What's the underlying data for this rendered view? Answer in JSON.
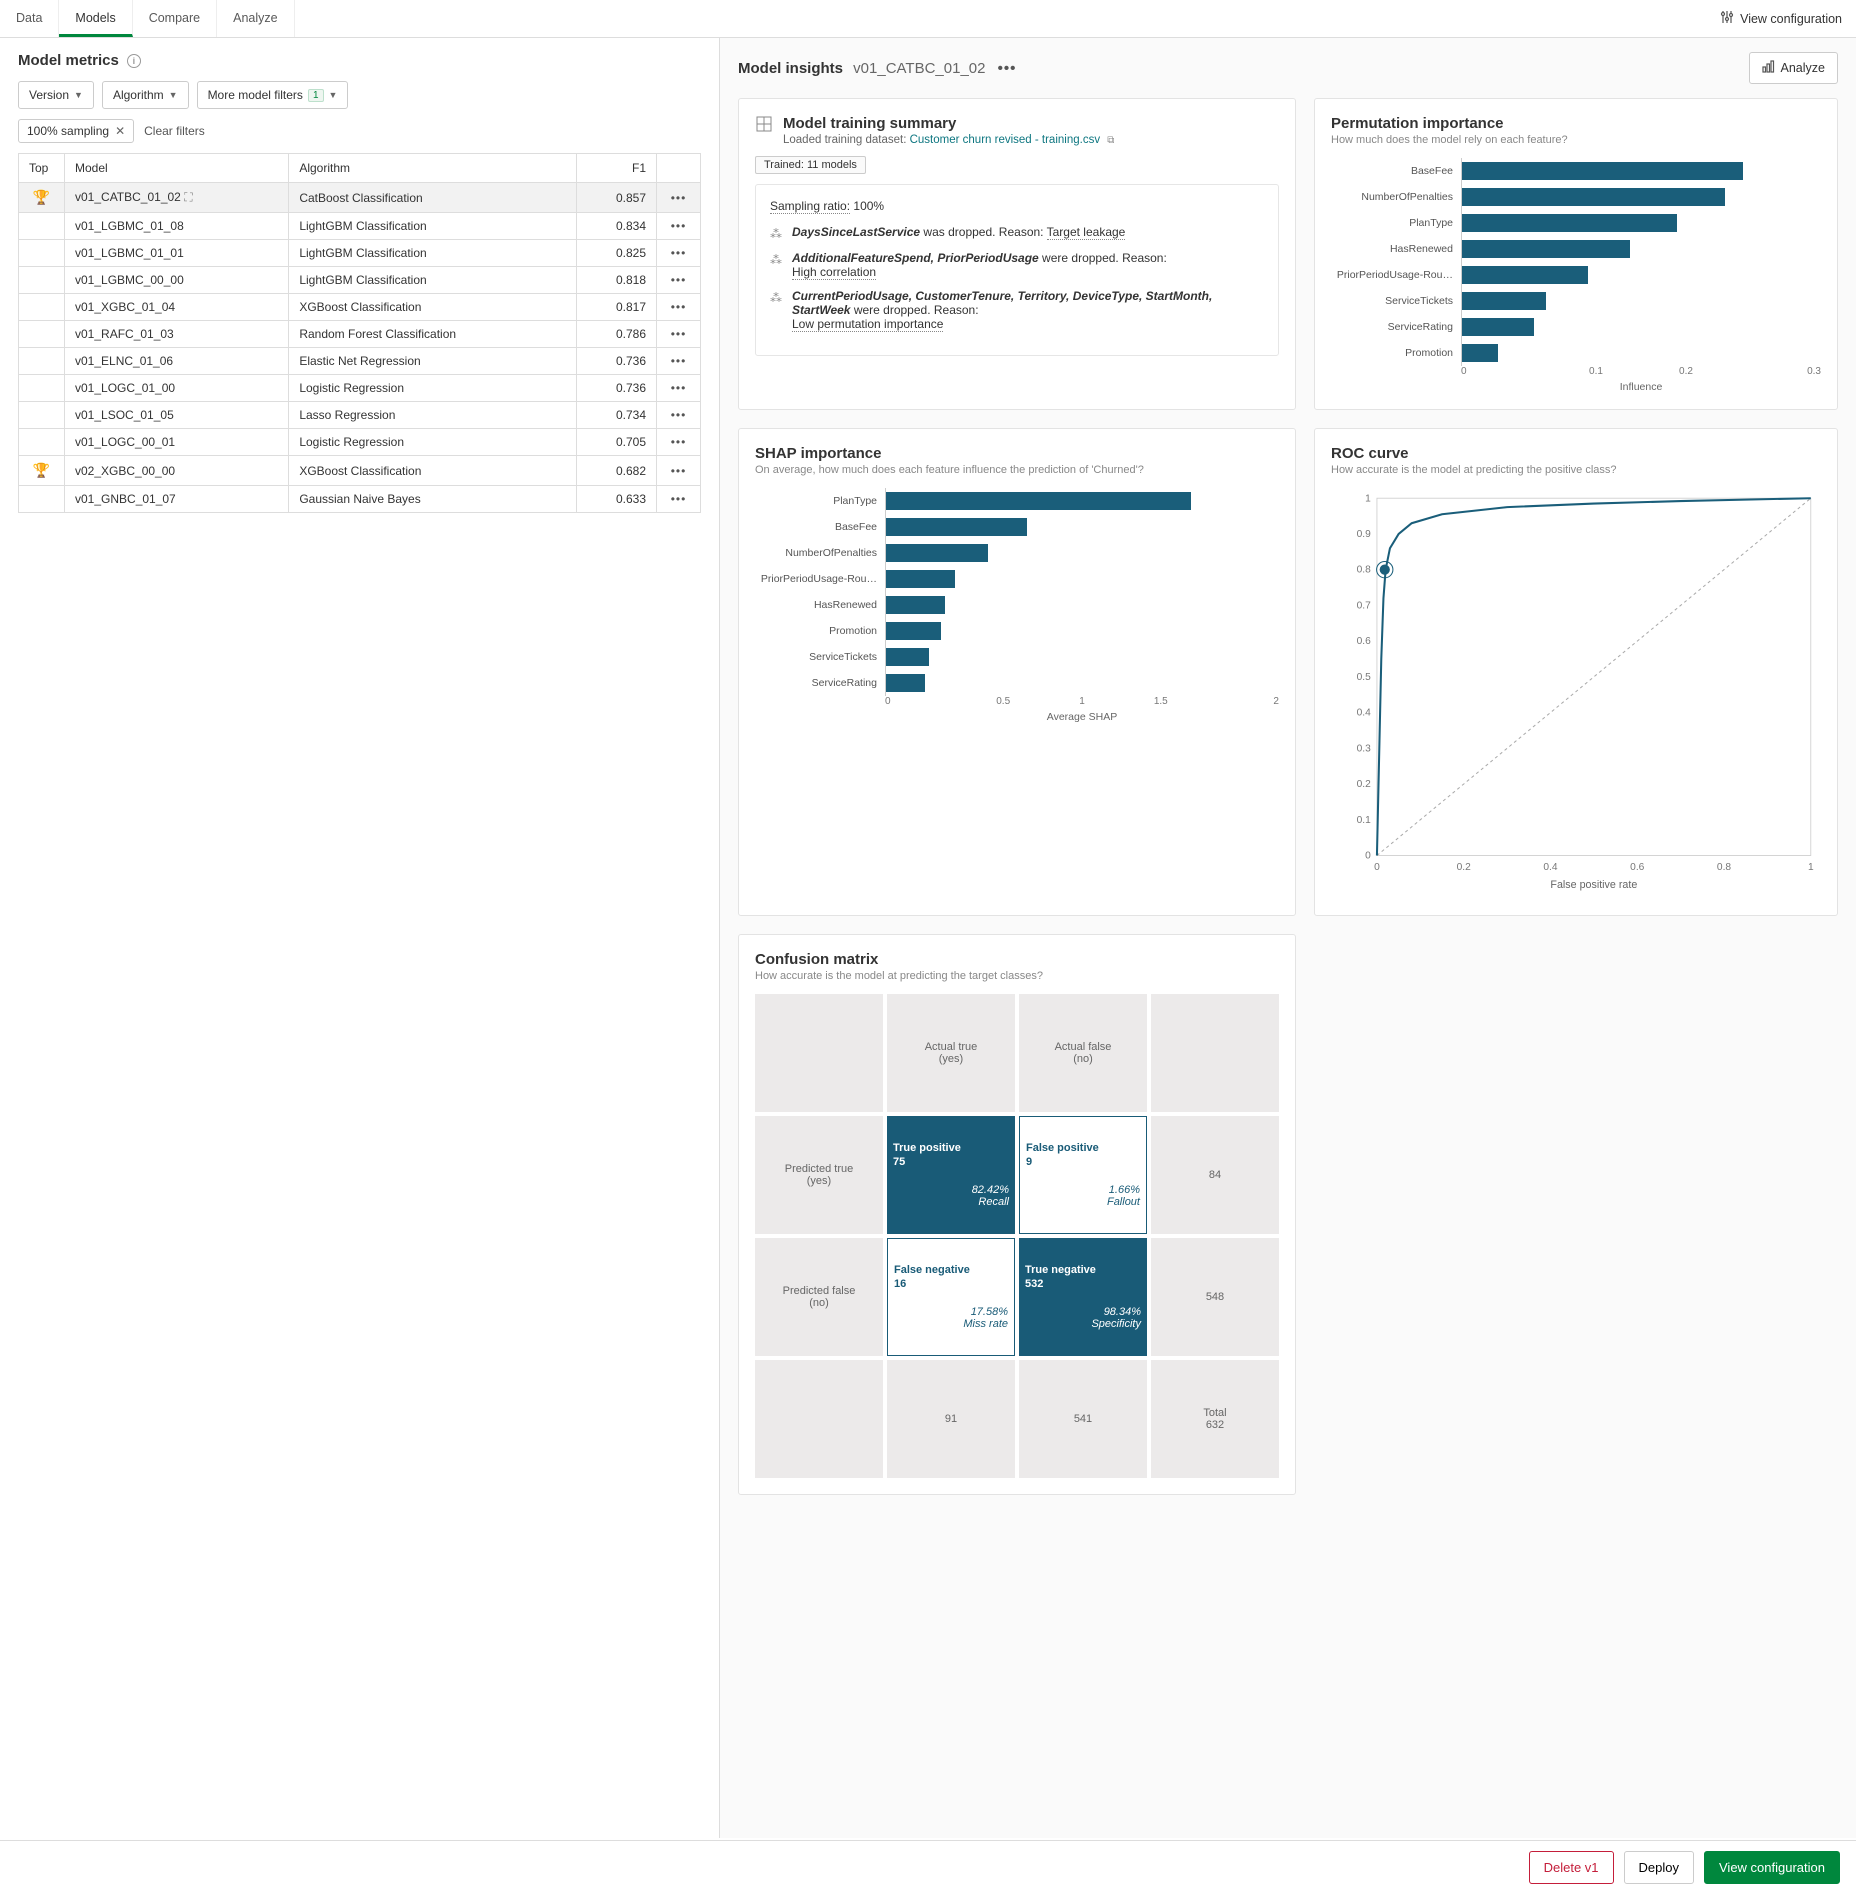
{
  "tabs": [
    "Data",
    "Models",
    "Compare",
    "Analyze"
  ],
  "active_tab": "Models",
  "view_config_label": "View configuration",
  "left": {
    "title": "Model metrics",
    "filters": {
      "version": "Version",
      "algorithm": "Algorithm",
      "more": "More model filters",
      "more_count": "1"
    },
    "chip": "100% sampling",
    "clear": "Clear filters",
    "columns": [
      "Top",
      "Model",
      "Algorithm",
      "F1",
      ""
    ],
    "rows": [
      {
        "top": "🏆",
        "model": "v01_CATBC_01_02",
        "algo": "CatBoost Classification",
        "f1": "0.857",
        "sel": true,
        "pin": true
      },
      {
        "top": "",
        "model": "v01_LGBMC_01_08",
        "algo": "LightGBM Classification",
        "f1": "0.834"
      },
      {
        "top": "",
        "model": "v01_LGBMC_01_01",
        "algo": "LightGBM Classification",
        "f1": "0.825"
      },
      {
        "top": "",
        "model": "v01_LGBMC_00_00",
        "algo": "LightGBM Classification",
        "f1": "0.818"
      },
      {
        "top": "",
        "model": "v01_XGBC_01_04",
        "algo": "XGBoost Classification",
        "f1": "0.817"
      },
      {
        "top": "",
        "model": "v01_RAFC_01_03",
        "algo": "Random Forest Classification",
        "f1": "0.786"
      },
      {
        "top": "",
        "model": "v01_ELNC_01_06",
        "algo": "Elastic Net Regression",
        "f1": "0.736"
      },
      {
        "top": "",
        "model": "v01_LOGC_01_00",
        "algo": "Logistic Regression",
        "f1": "0.736"
      },
      {
        "top": "",
        "model": "v01_LSOC_01_05",
        "algo": "Lasso Regression",
        "f1": "0.734"
      },
      {
        "top": "",
        "model": "v01_LOGC_00_01",
        "algo": "Logistic Regression",
        "f1": "0.705"
      },
      {
        "top": "🏆",
        "model": "v02_XGBC_00_00",
        "algo": "XGBoost Classification",
        "f1": "0.682"
      },
      {
        "top": "",
        "model": "v01_GNBC_01_07",
        "algo": "Gaussian Naive Bayes",
        "f1": "0.633"
      }
    ]
  },
  "right": {
    "title": "Model insights",
    "model": "v01_CATBC_01_02",
    "analyze": "Analyze"
  },
  "training": {
    "title": "Model training summary",
    "loaded": "Loaded training dataset:",
    "dataset": "Customer churn revised - training.csv",
    "pill": "Trained: 11 models",
    "sampling_label": "Sampling ratio:",
    "sampling_val": "100%",
    "b1a": "DaysSinceLastService",
    "b1b": " was dropped. Reason: ",
    "b1c": "Target leakage",
    "b2a": "AdditionalFeatureSpend, PriorPeriodUsage",
    "b2b": " were dropped. Reason:",
    "b2c": "High correlation",
    "b3a": "CurrentPeriodUsage, CustomerTenure, Territory, DeviceType, StartMonth, StartWeek",
    "b3b": " were dropped. Reason:",
    "b3c": "Low permutation importance"
  },
  "perm": {
    "title": "Permutation importance",
    "sub": "How much does the model rely on each feature?",
    "axis_title": "Influence",
    "max": 0.3,
    "ticks": [
      "0",
      "0.1",
      "0.2",
      "0.3"
    ],
    "bars": [
      {
        "label": "BaseFee",
        "v": 0.235
      },
      {
        "label": "NumberOfPenalties",
        "v": 0.22
      },
      {
        "label": "PlanType",
        "v": 0.18
      },
      {
        "label": "HasRenewed",
        "v": 0.14
      },
      {
        "label": "PriorPeriodUsage-Rou…",
        "v": 0.105
      },
      {
        "label": "ServiceTickets",
        "v": 0.07
      },
      {
        "label": "ServiceRating",
        "v": 0.06
      },
      {
        "label": "Promotion",
        "v": 0.03
      }
    ],
    "bar_color": "#1a5e7a"
  },
  "shap": {
    "title": "SHAP importance",
    "sub": "On average, how much does each feature influence the prediction of 'Churned'?",
    "axis_title": "Average SHAP",
    "max": 2.0,
    "ticks": [
      "0",
      "0.5",
      "1",
      "1.5",
      "2"
    ],
    "bars": [
      {
        "label": "PlanType",
        "v": 1.55
      },
      {
        "label": "BaseFee",
        "v": 0.72
      },
      {
        "label": "NumberOfPenalties",
        "v": 0.52
      },
      {
        "label": "PriorPeriodUsage-Rou…",
        "v": 0.35
      },
      {
        "label": "HasRenewed",
        "v": 0.3
      },
      {
        "label": "Promotion",
        "v": 0.28
      },
      {
        "label": "ServiceTickets",
        "v": 0.22
      },
      {
        "label": "ServiceRating",
        "v": 0.2
      }
    ],
    "bar_color": "#1a5e7a"
  },
  "roc": {
    "title": "ROC curve",
    "sub": "How accurate is the model at predicting the positive class?",
    "x_title": "False positive rate",
    "line_color": "#1a5e7a",
    "diag_color": "#aaaaaa",
    "dot_color": "#1a5e7a",
    "yticks": [
      "0",
      "0.1",
      "0.2",
      "0.3",
      "0.4",
      "0.5",
      "0.6",
      "0.7",
      "0.8",
      "0.9",
      "1"
    ],
    "xticks": [
      "0",
      "0.2",
      "0.4",
      "0.6",
      "0.8",
      "1"
    ]
  },
  "cm": {
    "title": "Confusion matrix",
    "sub": "How accurate is the model at predicting the target classes?",
    "actual_true": "Actual true\n(yes)",
    "actual_false": "Actual false\n(no)",
    "pred_true": "Predicted true\n(yes)",
    "pred_false": "Predicted false\n(no)",
    "tp": {
      "label": "True positive",
      "n": "75",
      "pct": "82.42%",
      "t": "Recall"
    },
    "fp": {
      "label": "False positive",
      "n": "9",
      "pct": "1.66%",
      "t": "Fallout"
    },
    "fn": {
      "label": "False negative",
      "n": "16",
      "pct": "17.58%",
      "t": "Miss rate"
    },
    "tn": {
      "label": "True negative",
      "n": "532",
      "pct": "98.34%",
      "t": "Specificity"
    },
    "row_true_total": "84",
    "row_false_total": "548",
    "col_true_total": "91",
    "col_false_total": "541",
    "total_label": "Total",
    "total": "632"
  },
  "footer": {
    "delete": "Delete v1",
    "deploy": "Deploy",
    "view": "View configuration"
  }
}
